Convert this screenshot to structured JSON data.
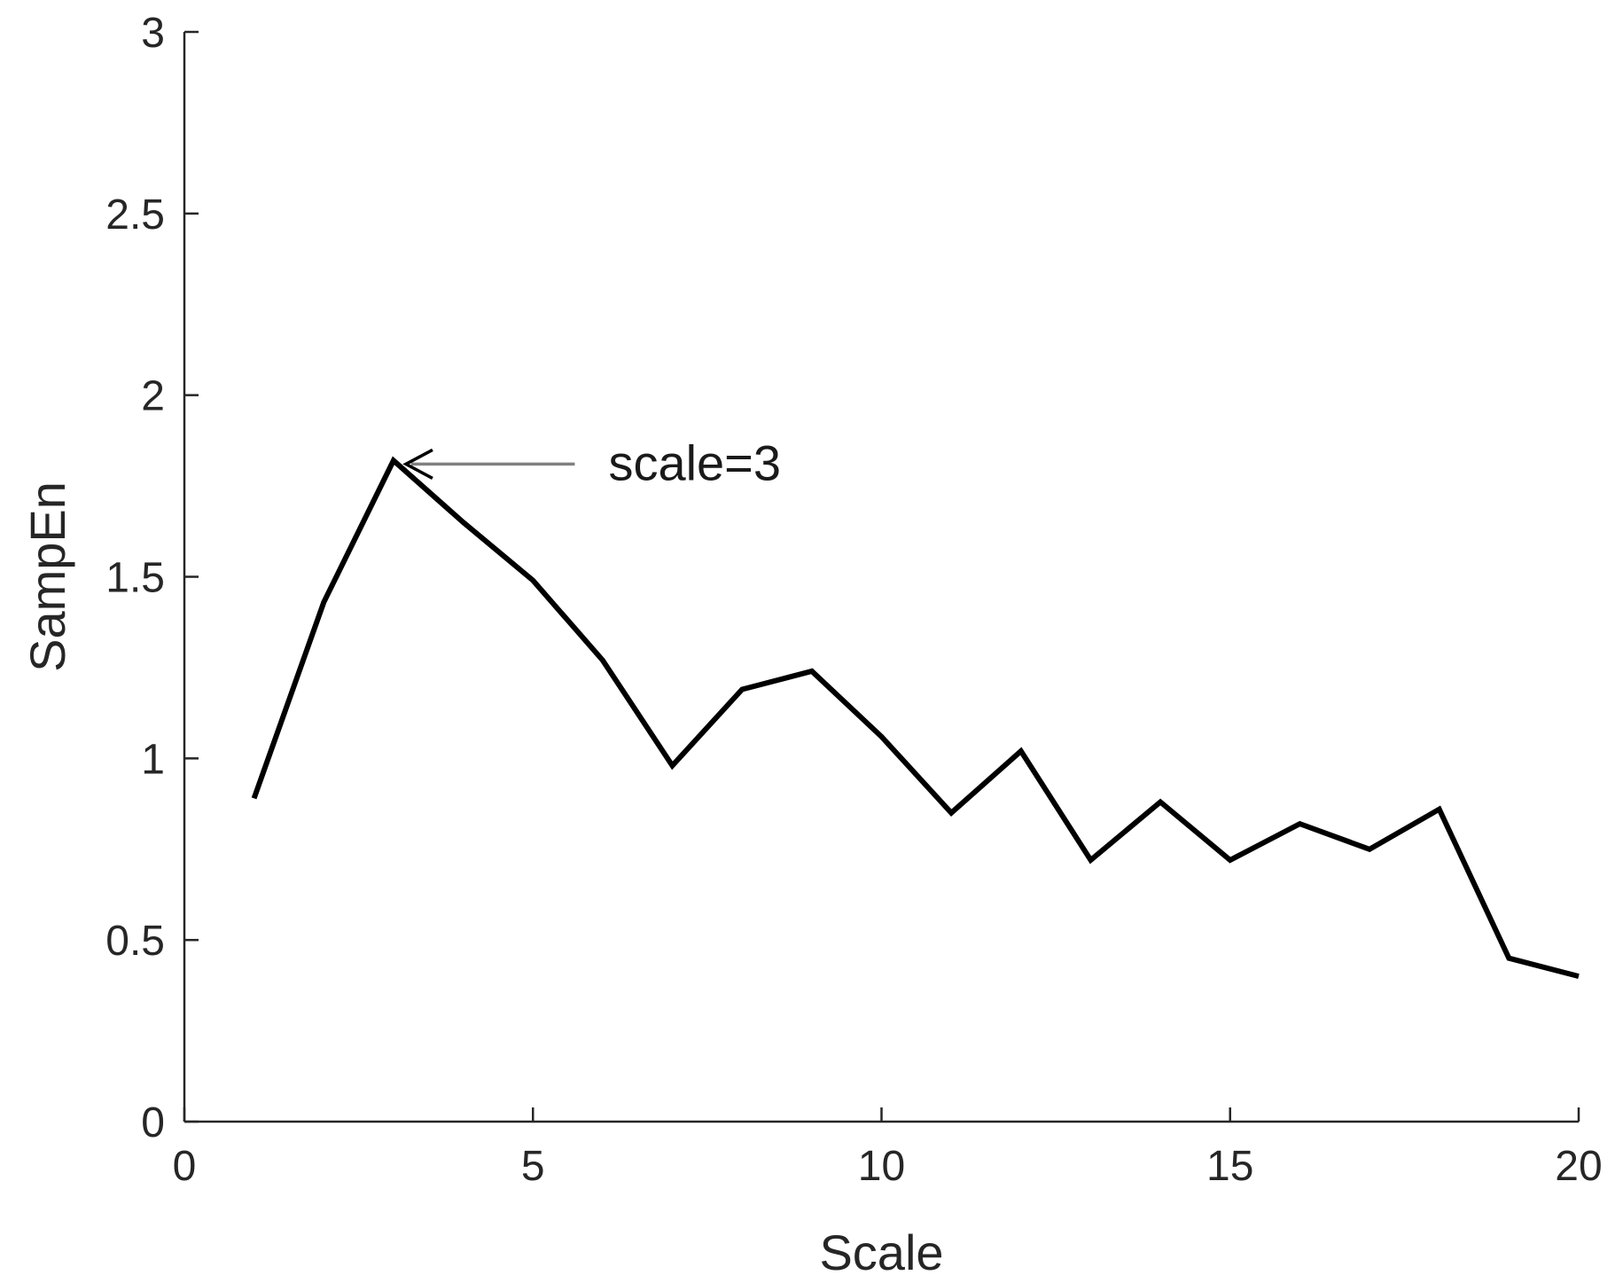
{
  "chart_data": {
    "type": "line",
    "title": "",
    "xlabel": "Scale",
    "ylabel": "SampEn",
    "xlim": [
      0,
      20
    ],
    "ylim": [
      0,
      3
    ],
    "xticks": [
      0,
      5,
      10,
      15,
      20
    ],
    "yticks": [
      0,
      0.5,
      1,
      1.5,
      2,
      2.5,
      3
    ],
    "xtick_labels": [
      "0",
      "5",
      "10",
      "15",
      "20"
    ],
    "ytick_labels": [
      "0",
      "0.5",
      "1",
      "1.5",
      "2",
      "2.5",
      "3"
    ],
    "grid": false,
    "legend": "none",
    "series": [
      {
        "color": "#000000",
        "x": [
          1,
          2,
          3,
          4,
          5,
          6,
          7,
          8,
          9,
          10,
          11,
          12,
          13,
          14,
          15,
          16,
          17,
          18,
          19,
          20
        ],
        "y": [
          0.89,
          1.43,
          1.82,
          1.65,
          1.49,
          1.27,
          0.98,
          1.19,
          1.24,
          1.06,
          0.85,
          1.02,
          0.72,
          0.88,
          0.72,
          0.82,
          0.75,
          0.86,
          0.45,
          0.4
        ]
      }
    ],
    "annotations": [
      {
        "text": "scale=3",
        "point": [
          3,
          1.82
        ],
        "text_anchor": [
          5.6,
          1.82
        ],
        "arrow_color": "#808080",
        "head_color": "#000000"
      }
    ]
  }
}
